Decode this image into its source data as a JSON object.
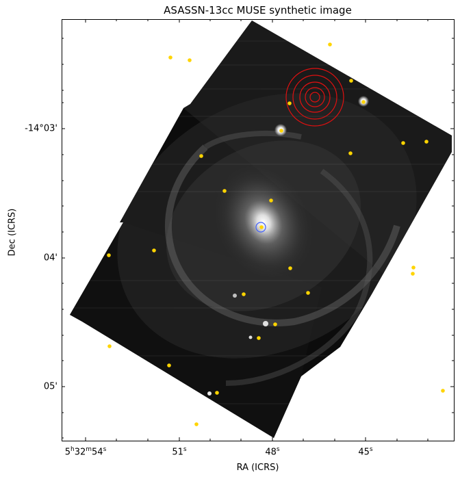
{
  "figure": {
    "title": "ASASSN-13cc MUSE synthetic image",
    "xlabel": "RA (ICRS)",
    "ylabel": "Dec (ICRS)",
    "x_ticks": [
      {
        "h": "5",
        "hu": "h",
        "m": "32",
        "mu": "m",
        "s": "54",
        "su": "s"
      },
      {
        "h": "",
        "hu": "",
        "m": "",
        "mu": "",
        "s": "51",
        "su": "s"
      },
      {
        "h": "",
        "hu": "",
        "m": "",
        "mu": "",
        "s": "48",
        "su": "s"
      },
      {
        "h": "",
        "hu": "",
        "m": "",
        "mu": "",
        "s": "45",
        "su": "s"
      }
    ],
    "y_ticks": [
      "-14°03'",
      "04'",
      "05'"
    ],
    "colors": {
      "marker": "#ffd400",
      "target_circles": "#e01010",
      "host_marker": "#4060ff",
      "background": "#000000"
    }
  }
}
